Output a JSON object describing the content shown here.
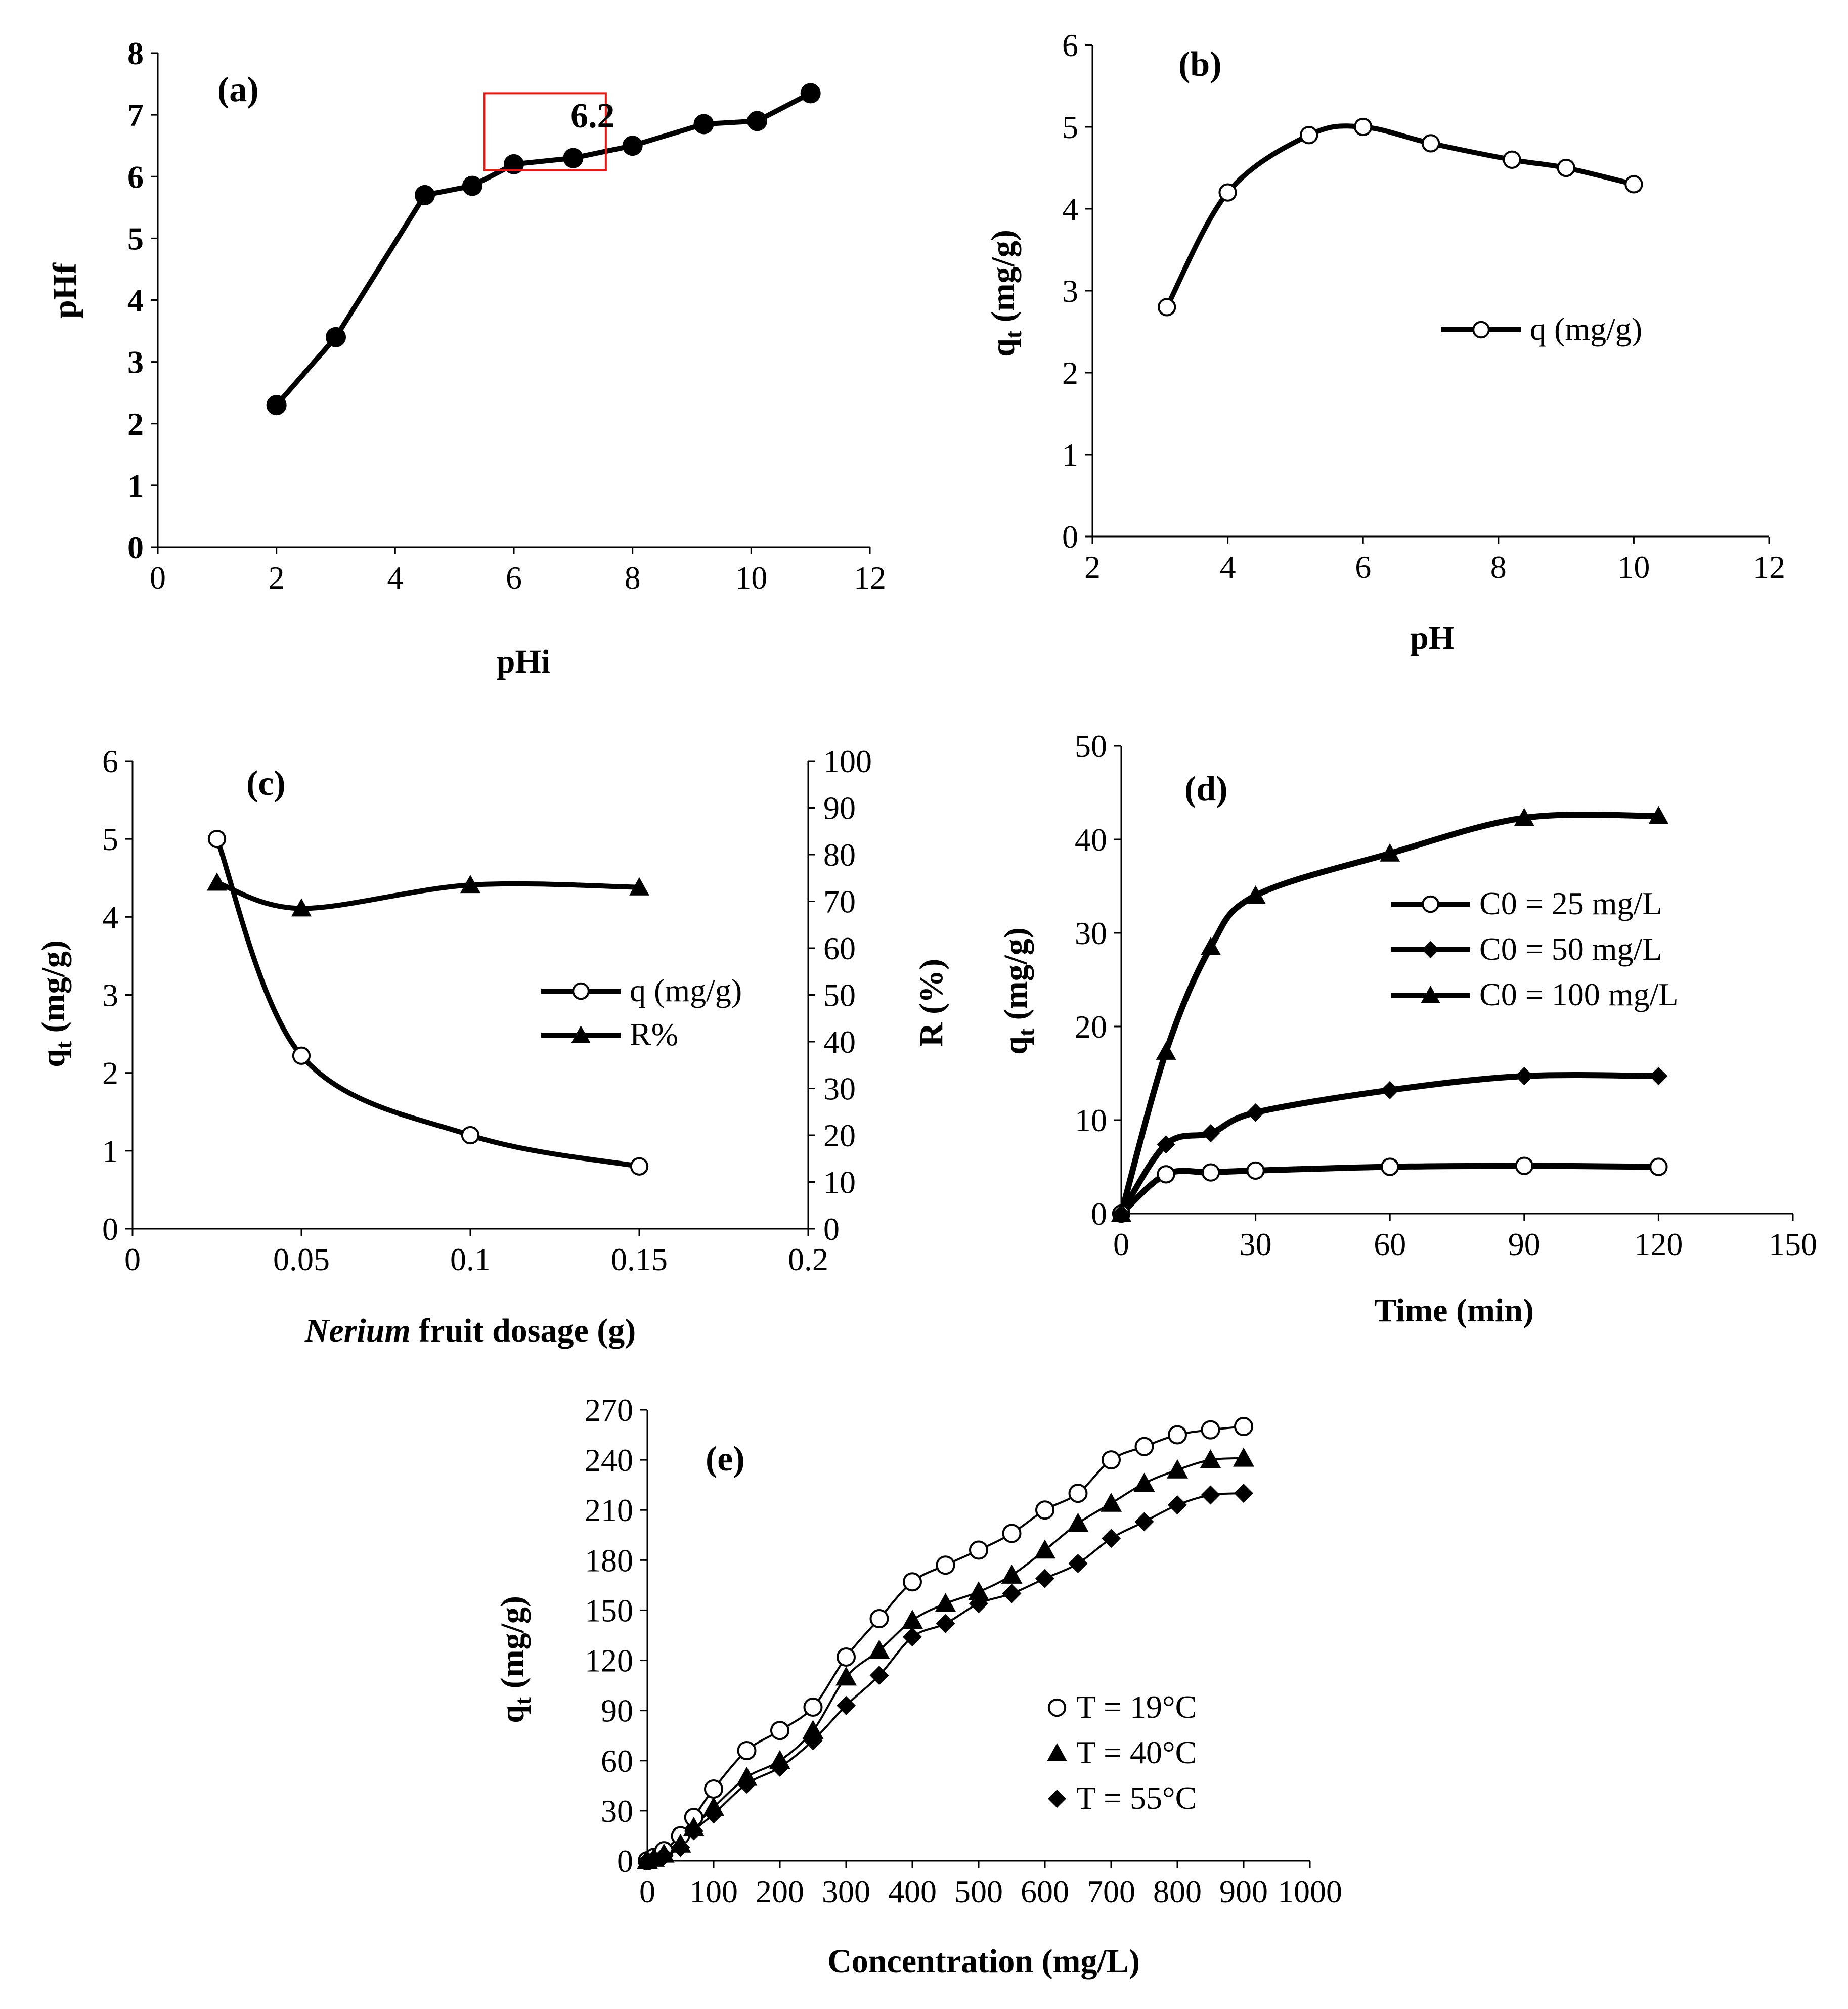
{
  "chart_data": [
    {
      "id": "a",
      "type": "line",
      "panel_label": "(a)",
      "xlabel": "pHi",
      "ylabel": "pHf",
      "xlim": [
        0,
        12
      ],
      "ylim": [
        0,
        8
      ],
      "xticks": [
        "0",
        "2",
        "4",
        "6",
        "8",
        "10",
        "12"
      ],
      "yticks": [
        "0",
        "1",
        "2",
        "3",
        "4",
        "5",
        "6",
        "7",
        "8"
      ],
      "annotation": "6.2",
      "highlight": {
        "x0": 5.5,
        "x1": 7.55,
        "y0": 6.1,
        "y1": 7.35,
        "color": "#e11a1a"
      },
      "series": [
        {
          "name": "pHf",
          "marker": "filled-circle",
          "x": [
            2,
            3,
            4.5,
            5.3,
            6,
            7,
            8,
            9.2,
            10.1,
            11
          ],
          "y": [
            2.3,
            3.4,
            5.7,
            5.85,
            6.2,
            6.3,
            6.5,
            6.85,
            6.9,
            7.35
          ]
        }
      ]
    },
    {
      "id": "b",
      "type": "line",
      "panel_label": "(b)",
      "xlabel": "pH",
      "ylabel_main": "q",
      "ylabel_sub": "t",
      "ylabel_rest": " (mg/g)",
      "xlim": [
        2,
        12
      ],
      "ylim": [
        0,
        6
      ],
      "xticks": [
        "2",
        "4",
        "6",
        "8",
        "10",
        "12"
      ],
      "yticks": [
        "0",
        "1",
        "2",
        "3",
        "4",
        "5",
        "6"
      ],
      "legend": [
        "q (mg/g)"
      ],
      "series": [
        {
          "name": "q (mg/g)",
          "marker": "open-circle",
          "x": [
            3.1,
            4,
            5.2,
            6,
            7,
            8.2,
            9,
            10
          ],
          "y": [
            2.8,
            4.2,
            4.9,
            5.0,
            4.8,
            4.6,
            4.5,
            4.3
          ]
        }
      ]
    },
    {
      "id": "c",
      "type": "line",
      "panel_label": "(c)",
      "xlabel_italic": "Nerium",
      "xlabel_rest": " fruit dosage (g)",
      "ylabel_main": "q",
      "ylabel_sub": "t",
      "ylabel_rest": " (mg/g)",
      "y2label": "R (%)",
      "xlim": [
        0,
        0.2
      ],
      "ylim": [
        0,
        6
      ],
      "y2lim": [
        0,
        100
      ],
      "xticks": [
        "0",
        "0.05",
        "0.1",
        "0.15",
        "0.2"
      ],
      "yticks": [
        "0",
        "1",
        "2",
        "3",
        "4",
        "5",
        "6"
      ],
      "y2ticks": [
        "0",
        "10",
        "20",
        "30",
        "40",
        "50",
        "60",
        "70",
        "80",
        "90",
        "100"
      ],
      "legend": [
        "q (mg/g)",
        "R%"
      ],
      "series": [
        {
          "name": "q (mg/g)",
          "marker": "open-circle",
          "axis": "left",
          "x": [
            0.025,
            0.05,
            0.1,
            0.15
          ],
          "y": [
            5.0,
            2.22,
            1.2,
            0.8
          ]
        },
        {
          "name": "R%",
          "marker": "triangle",
          "axis": "right",
          "x": [
            0.025,
            0.05,
            0.1,
            0.15
          ],
          "y": [
            74,
            68.5,
            73.5,
            73
          ]
        }
      ]
    },
    {
      "id": "d",
      "type": "line",
      "panel_label": "(d)",
      "xlabel": "Time (min)",
      "ylabel_main": "q",
      "ylabel_sub": "t",
      "ylabel_rest": " (mg/g)",
      "xlim": [
        0,
        150
      ],
      "ylim": [
        0,
        50
      ],
      "xticks": [
        "0",
        "30",
        "60",
        "90",
        "120",
        "150"
      ],
      "yticks": [
        "0",
        "10",
        "20",
        "30",
        "40",
        "50"
      ],
      "legend": [
        "C0 = 25 mg/L",
        "C0 = 50 mg/L",
        "C0 = 100 mg/L"
      ],
      "series": [
        {
          "name": "C0 = 25 mg/L",
          "marker": "open-circle",
          "x": [
            0,
            10,
            20,
            30,
            60,
            90,
            120
          ],
          "y": [
            0,
            4.2,
            4.4,
            4.6,
            5.0,
            5.1,
            5.0
          ]
        },
        {
          "name": "C0 = 50 mg/L",
          "marker": "diamond",
          "x": [
            0,
            10,
            20,
            30,
            60,
            90,
            120
          ],
          "y": [
            0,
            7.4,
            8.6,
            10.8,
            13.2,
            14.7,
            14.7
          ]
        },
        {
          "name": "C0 = 100 mg/L",
          "marker": "triangle",
          "x": [
            0,
            10,
            20,
            30,
            60,
            90,
            120
          ],
          "y": [
            0,
            17.3,
            28.5,
            34.0,
            38.5,
            42.3,
            42.5
          ]
        }
      ]
    },
    {
      "id": "e",
      "type": "line",
      "panel_label": "(e)",
      "xlabel": "Concentration (mg/L)",
      "ylabel_main": "q",
      "ylabel_sub": "t",
      "ylabel_rest": " (mg/g)",
      "xlim": [
        0,
        1000
      ],
      "ylim": [
        0,
        270
      ],
      "xticks": [
        "0",
        "100",
        "200",
        "300",
        "400",
        "500",
        "600",
        "700",
        "800",
        "900",
        "1000"
      ],
      "yticks": [
        "0",
        "30",
        "60",
        "90",
        "120",
        "150",
        "180",
        "210",
        "240",
        "270"
      ],
      "legend": [
        "T = 19°C",
        "T = 40°C",
        "T = 55°C"
      ],
      "series": [
        {
          "name": "T = 19°C",
          "marker": "open-circle",
          "x": [
            0,
            10,
            25,
            50,
            70,
            100,
            150,
            200,
            250,
            300,
            350,
            400,
            450,
            500,
            550,
            600,
            650,
            700,
            750,
            800,
            850,
            900
          ],
          "y": [
            0,
            2,
            6,
            15,
            26,
            43,
            66,
            78,
            92,
            122,
            145,
            167,
            177,
            186,
            196,
            210,
            220,
            240,
            248,
            255,
            258,
            260
          ]
        },
        {
          "name": "T = 40°C",
          "marker": "triangle",
          "x": [
            0,
            10,
            25,
            50,
            70,
            100,
            150,
            200,
            250,
            300,
            350,
            400,
            450,
            500,
            550,
            600,
            650,
            700,
            750,
            800,
            850,
            900
          ],
          "y": [
            0,
            1.5,
            4,
            10,
            20,
            32,
            50,
            60,
            78,
            110,
            126,
            144,
            154,
            161,
            171,
            186,
            202,
            214,
            226,
            234,
            240,
            241
          ]
        },
        {
          "name": "T = 55°C",
          "marker": "diamond",
          "x": [
            0,
            10,
            25,
            50,
            70,
            100,
            150,
            200,
            250,
            300,
            350,
            400,
            450,
            500,
            550,
            600,
            650,
            700,
            750,
            800,
            850,
            900
          ],
          "y": [
            0,
            1,
            3,
            8,
            18,
            28,
            46,
            56,
            72,
            93,
            111,
            134,
            142,
            154,
            160,
            169,
            178,
            193,
            203,
            213,
            219,
            220
          ]
        }
      ]
    }
  ]
}
